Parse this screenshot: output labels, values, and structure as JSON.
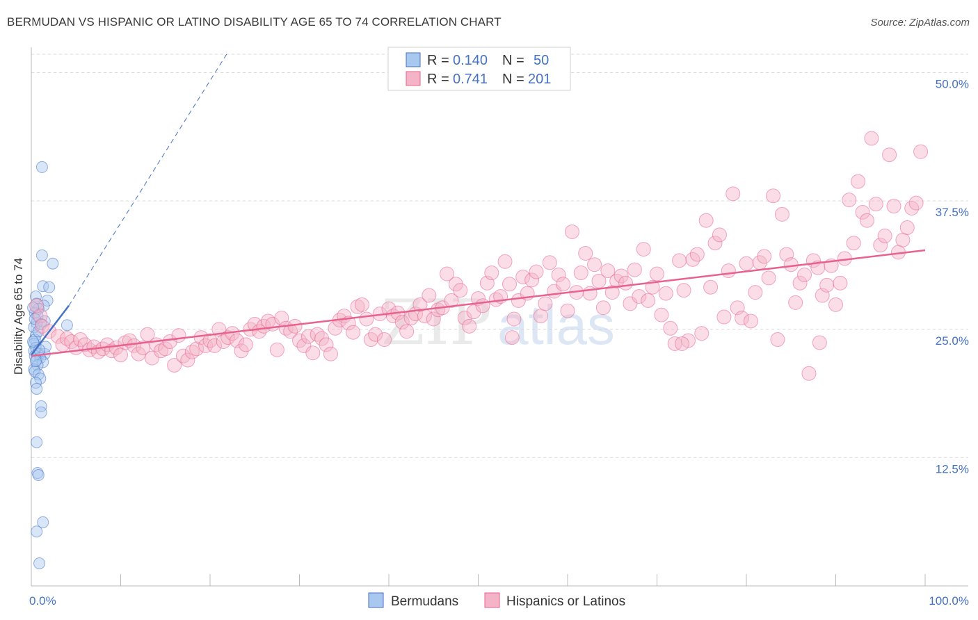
{
  "title": "BERMUDAN VS HISPANIC OR LATINO DISABILITY AGE 65 TO 74 CORRELATION CHART",
  "source": "Source: ZipAtlas.com",
  "watermark": {
    "zip": "ZIP",
    "atlas": "atlas"
  },
  "colors": {
    "blue": "#4472c4",
    "blue_fill": "#a9c8f0",
    "pink": "#e8628f",
    "pink_fill": "#f5b3c8",
    "grid": "#d9d9d9"
  },
  "legend": {
    "rows": [
      {
        "r_label": "R =",
        "r_value": "0.140",
        "n_label": "N =",
        "n_value": "50"
      },
      {
        "r_label": "R =",
        "r_value": "0.741",
        "n_label": "N =",
        "n_value": "201"
      }
    ]
  },
  "bottom_legend": [
    "Bermudans",
    "Hispanics or Latinos"
  ],
  "chart_data": {
    "type": "scatter",
    "xlabel": "",
    "ylabel": "Disability Age 65 to 74",
    "xlim": [
      0,
      100
    ],
    "ylim": [
      0,
      52
    ],
    "x_tick_labels": [
      "0.0%",
      "100.0%"
    ],
    "y_ticks": [
      12.5,
      25.0,
      37.5,
      50.0
    ],
    "y_tick_labels": [
      "12.5%",
      "25.0%",
      "37.5%",
      "50.0%"
    ],
    "grid": true,
    "series": [
      {
        "name": "Bermudans",
        "trend": {
          "x0": 0,
          "y0": 22.5,
          "x1": 4.2,
          "y1": 27.3,
          "dashed_to_x": 22,
          "dashed_to_y": 52
        },
        "points": [
          [
            1.2,
            40.8
          ],
          [
            1.2,
            32.2
          ],
          [
            2.4,
            31.4
          ],
          [
            1.3,
            29.2
          ],
          [
            2.0,
            29.1
          ],
          [
            0.5,
            28.2
          ],
          [
            1.8,
            27.8
          ],
          [
            0.6,
            27.5
          ],
          [
            1.4,
            27.3
          ],
          [
            0.8,
            27.0
          ],
          [
            0.4,
            26.6
          ],
          [
            0.7,
            26.3
          ],
          [
            1.5,
            25.8
          ],
          [
            0.6,
            25.6
          ],
          [
            4.0,
            25.4
          ],
          [
            0.3,
            25.2
          ],
          [
            0.5,
            24.4
          ],
          [
            0.4,
            24.0
          ],
          [
            0.3,
            23.6
          ],
          [
            0.5,
            23.2
          ],
          [
            0.3,
            22.9
          ],
          [
            0.9,
            22.6
          ],
          [
            1.5,
            22.6
          ],
          [
            0.4,
            22.4
          ],
          [
            1.0,
            22.2
          ],
          [
            0.6,
            22.0
          ],
          [
            1.3,
            21.8
          ],
          [
            0.7,
            21.5
          ],
          [
            0.3,
            21.1
          ],
          [
            0.4,
            20.9
          ],
          [
            0.8,
            20.6
          ],
          [
            1.0,
            20.2
          ],
          [
            0.5,
            19.8
          ],
          [
            0.6,
            19.2
          ],
          [
            1.1,
            17.5
          ],
          [
            1.1,
            16.9
          ],
          [
            0.6,
            14.0
          ],
          [
            0.7,
            11.0
          ],
          [
            0.8,
            10.8
          ],
          [
            1.3,
            6.2
          ],
          [
            0.6,
            5.3
          ],
          [
            0.9,
            2.2
          ],
          [
            0.4,
            26.0
          ],
          [
            0.8,
            24.8
          ],
          [
            1.6,
            23.3
          ],
          [
            0.2,
            23.8
          ],
          [
            0.9,
            23.0
          ],
          [
            0.5,
            21.9
          ],
          [
            0.2,
            27.1
          ],
          [
            1.1,
            25.5
          ]
        ]
      },
      {
        "name": "Hispanics or Latinos",
        "trend": {
          "x0": 0,
          "y0": 22.4,
          "x1": 100,
          "y1": 32.7
        },
        "points": [
          [
            0.6,
            27.3
          ],
          [
            1.0,
            26.3
          ],
          [
            1.2,
            25.3
          ],
          [
            2.0,
            24.8
          ],
          [
            3.0,
            24.3
          ],
          [
            3.5,
            23.5
          ],
          [
            4.0,
            24.1
          ],
          [
            4.5,
            23.8
          ],
          [
            5.0,
            23.2
          ],
          [
            5.5,
            24.0
          ],
          [
            6.0,
            23.5
          ],
          [
            6.5,
            23.0
          ],
          [
            7.0,
            23.3
          ],
          [
            7.5,
            22.8
          ],
          [
            8.0,
            23.1
          ],
          [
            8.5,
            23.5
          ],
          [
            9.0,
            22.9
          ],
          [
            9.5,
            23.2
          ],
          [
            10.0,
            22.5
          ],
          [
            10.5,
            23.7
          ],
          [
            11.0,
            23.9
          ],
          [
            11.5,
            23.4
          ],
          [
            12.0,
            22.6
          ],
          [
            12.5,
            23.2
          ],
          [
            13.0,
            24.5
          ],
          [
            13.5,
            22.2
          ],
          [
            14.0,
            23.5
          ],
          [
            14.5,
            22.9
          ],
          [
            15.0,
            23.1
          ],
          [
            15.5,
            23.8
          ],
          [
            16.0,
            21.5
          ],
          [
            16.5,
            24.4
          ],
          [
            17.0,
            22.4
          ],
          [
            17.5,
            22.0
          ],
          [
            18.0,
            22.8
          ],
          [
            18.5,
            23.1
          ],
          [
            19.0,
            24.2
          ],
          [
            19.5,
            23.4
          ],
          [
            20.0,
            23.9
          ],
          [
            20.5,
            23.4
          ],
          [
            21.0,
            25.0
          ],
          [
            21.5,
            23.8
          ],
          [
            22.0,
            24.2
          ],
          [
            22.5,
            24.6
          ],
          [
            23.0,
            23.9
          ],
          [
            23.5,
            22.9
          ],
          [
            24.0,
            23.5
          ],
          [
            24.5,
            25.0
          ],
          [
            25.0,
            25.5
          ],
          [
            25.5,
            24.8
          ],
          [
            26.0,
            25.3
          ],
          [
            26.5,
            25.8
          ],
          [
            27.0,
            25.5
          ],
          [
            27.5,
            23.0
          ],
          [
            28.0,
            26.1
          ],
          [
            28.5,
            25.1
          ],
          [
            29.0,
            24.8
          ],
          [
            29.5,
            25.3
          ],
          [
            30.0,
            23.9
          ],
          [
            30.5,
            23.4
          ],
          [
            31.0,
            24.3
          ],
          [
            31.5,
            22.7
          ],
          [
            32.0,
            24.5
          ],
          [
            32.5,
            24.1
          ],
          [
            33.0,
            23.5
          ],
          [
            33.5,
            22.6
          ],
          [
            34.0,
            25.1
          ],
          [
            34.5,
            25.9
          ],
          [
            35.0,
            26.3
          ],
          [
            35.5,
            25.6
          ],
          [
            36.0,
            24.7
          ],
          [
            36.5,
            27.2
          ],
          [
            37.0,
            27.4
          ],
          [
            37.5,
            26.0
          ],
          [
            38.0,
            24.0
          ],
          [
            38.5,
            24.5
          ],
          [
            39.0,
            26.5
          ],
          [
            39.5,
            24.0
          ],
          [
            40.0,
            27.0
          ],
          [
            40.5,
            26.3
          ],
          [
            41.0,
            26.6
          ],
          [
            41.5,
            25.7
          ],
          [
            42.0,
            24.8
          ],
          [
            42.5,
            26.1
          ],
          [
            43.0,
            26.5
          ],
          [
            43.5,
            27.4
          ],
          [
            44.0,
            26.3
          ],
          [
            44.5,
            28.3
          ],
          [
            45.0,
            26.0
          ],
          [
            45.5,
            26.9
          ],
          [
            46.0,
            27.1
          ],
          [
            46.5,
            30.4
          ],
          [
            47.0,
            27.8
          ],
          [
            47.5,
            29.4
          ],
          [
            48.0,
            28.8
          ],
          [
            48.5,
            26.1
          ],
          [
            49.0,
            25.3
          ],
          [
            49.5,
            26.7
          ],
          [
            50.0,
            28.0
          ],
          [
            50.5,
            27.3
          ],
          [
            51.0,
            29.5
          ],
          [
            51.5,
            30.5
          ],
          [
            52.0,
            27.9
          ],
          [
            52.5,
            28.2
          ],
          [
            53.0,
            31.6
          ],
          [
            53.5,
            29.4
          ],
          [
            54.0,
            26.0
          ],
          [
            54.5,
            27.8
          ],
          [
            55.0,
            30.1
          ],
          [
            55.5,
            28.5
          ],
          [
            56.0,
            29.8
          ],
          [
            56.5,
            30.6
          ],
          [
            57.0,
            26.3
          ],
          [
            57.5,
            27.5
          ],
          [
            58.0,
            31.5
          ],
          [
            58.5,
            28.7
          ],
          [
            59.0,
            30.3
          ],
          [
            59.5,
            29.4
          ],
          [
            60.0,
            26.8
          ],
          [
            60.5,
            34.5
          ],
          [
            61.0,
            28.6
          ],
          [
            61.5,
            30.5
          ],
          [
            62.0,
            32.4
          ],
          [
            62.5,
            28.5
          ],
          [
            63.0,
            31.3
          ],
          [
            63.5,
            29.7
          ],
          [
            64.0,
            27.1
          ],
          [
            64.5,
            30.7
          ],
          [
            65.0,
            28.6
          ],
          [
            65.5,
            29.7
          ],
          [
            66.0,
            30.2
          ],
          [
            66.5,
            29.5
          ],
          [
            67.0,
            27.5
          ],
          [
            67.5,
            30.8
          ],
          [
            68.0,
            28.2
          ],
          [
            68.5,
            32.8
          ],
          [
            69.0,
            27.8
          ],
          [
            69.5,
            29.1
          ],
          [
            70.0,
            30.4
          ],
          [
            70.5,
            26.4
          ],
          [
            71.0,
            28.5
          ],
          [
            71.5,
            25.1
          ],
          [
            72.0,
            23.6
          ],
          [
            72.5,
            31.7
          ],
          [
            73.0,
            28.8
          ],
          [
            73.5,
            23.9
          ],
          [
            74.0,
            31.8
          ],
          [
            74.5,
            32.3
          ],
          [
            75.0,
            24.6
          ],
          [
            75.5,
            35.6
          ],
          [
            76.0,
            29.1
          ],
          [
            76.5,
            33.4
          ],
          [
            77.0,
            34.2
          ],
          [
            77.5,
            26.2
          ],
          [
            78.0,
            30.7
          ],
          [
            78.5,
            38.2
          ],
          [
            79.0,
            27.1
          ],
          [
            79.5,
            26.1
          ],
          [
            80.0,
            31.4
          ],
          [
            80.5,
            25.8
          ],
          [
            81.0,
            28.6
          ],
          [
            81.5,
            31.5
          ],
          [
            82.0,
            32.1
          ],
          [
            82.5,
            30.0
          ],
          [
            83.0,
            38.0
          ],
          [
            83.5,
            24.0
          ],
          [
            84.0,
            36.2
          ],
          [
            84.5,
            32.3
          ],
          [
            85.0,
            31.3
          ],
          [
            85.5,
            27.6
          ],
          [
            86.0,
            29.5
          ],
          [
            86.5,
            30.3
          ],
          [
            87.0,
            20.7
          ],
          [
            87.5,
            31.7
          ],
          [
            88.0,
            31.0
          ],
          [
            88.5,
            28.3
          ],
          [
            89.0,
            29.3
          ],
          [
            89.5,
            31.2
          ],
          [
            90.0,
            27.4
          ],
          [
            90.5,
            29.5
          ],
          [
            91.0,
            31.9
          ],
          [
            91.5,
            37.6
          ],
          [
            92.0,
            33.4
          ],
          [
            92.5,
            39.4
          ],
          [
            93.0,
            36.4
          ],
          [
            93.5,
            35.6
          ],
          [
            94.0,
            43.6
          ],
          [
            94.5,
            37.2
          ],
          [
            95.0,
            33.2
          ],
          [
            95.5,
            34.1
          ],
          [
            96.0,
            42.0
          ],
          [
            96.5,
            37.0
          ],
          [
            97.0,
            32.5
          ],
          [
            97.5,
            33.7
          ],
          [
            98.0,
            34.9
          ],
          [
            98.5,
            36.8
          ],
          [
            99.0,
            37.3
          ],
          [
            99.5,
            42.3
          ],
          [
            53.8,
            24.2
          ],
          [
            88.2,
            23.7
          ],
          [
            72.8,
            23.6
          ]
        ]
      }
    ]
  }
}
